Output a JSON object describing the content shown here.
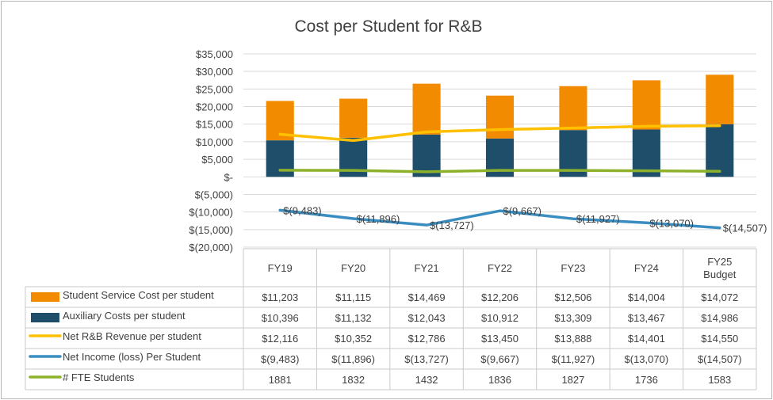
{
  "chart_data": {
    "type": "bar",
    "title": "Cost per Student for R&B",
    "categories": [
      "FY19",
      "FY20",
      "FY21",
      "FY22",
      "FY23",
      "FY24",
      "FY25 Budget"
    ],
    "category_lines": [
      [
        "FY19"
      ],
      [
        "FY20"
      ],
      [
        "FY21"
      ],
      [
        "FY22"
      ],
      [
        "FY23"
      ],
      [
        "FY24"
      ],
      [
        "FY25",
        "Budget"
      ]
    ],
    "ylim": [
      -20000,
      35000
    ],
    "yticks": [
      35000,
      30000,
      25000,
      20000,
      15000,
      10000,
      5000,
      0,
      -5000,
      -10000,
      -15000,
      -20000
    ],
    "ytick_labels": [
      "$35,000",
      "$30,000",
      "$25,000",
      "$20,000",
      "$15,000",
      "$10,000",
      "$5,000",
      "$-",
      "$(5,000)",
      "$(10,000)",
      "$(15,000)",
      "$(20,000)"
    ],
    "grid": true,
    "legend": "data-table",
    "series": [
      {
        "name": "Student Service Cost per student",
        "kind": "stacked-bar",
        "color": "#f38b00",
        "values": [
          11203,
          11115,
          14469,
          12206,
          12506,
          14004,
          14072
        ],
        "labels": [
          "$11,203",
          "$11,115",
          "$14,469",
          "$12,206",
          "$12,506",
          "$14,004",
          "$14,072"
        ]
      },
      {
        "name": "Auxiliary Costs per student",
        "kind": "stacked-bar",
        "color": "#1f4e6b",
        "values": [
          10396,
          11132,
          12043,
          10912,
          13309,
          13467,
          14986
        ],
        "labels": [
          "$10,396",
          "$11,132",
          "$12,043",
          "$10,912",
          "$13,309",
          "$13,467",
          "$14,986"
        ]
      },
      {
        "name": "Net R&B Revenue per student",
        "kind": "line",
        "color": "#ffc000",
        "values": [
          12116,
          10352,
          12786,
          13450,
          13888,
          14401,
          14550
        ],
        "labels": [
          "$12,116",
          "$10,352",
          "$12,786",
          "$13,450",
          "$13,888",
          "$14,401",
          "$14,550"
        ]
      },
      {
        "name": "Net Income (loss) Per Student",
        "kind": "line",
        "color": "#3a8dc1",
        "values": [
          -9483,
          -11896,
          -13727,
          -9667,
          -11927,
          -13070,
          -14507
        ],
        "labels": [
          "$(9,483)",
          "$(11,896)",
          "$(13,727)",
          "$(9,667)",
          "$(11,927)",
          "$(13,070)",
          "$(14,507)"
        ],
        "show_data_labels": true
      },
      {
        "name": "# FTE Students",
        "kind": "line",
        "color": "#8db12a",
        "values": [
          1881,
          1832,
          1432,
          1836,
          1827,
          1736,
          1583
        ],
        "labels": [
          "1881",
          "1832",
          "1432",
          "1836",
          "1827",
          "1736",
          "1583"
        ]
      }
    ]
  }
}
